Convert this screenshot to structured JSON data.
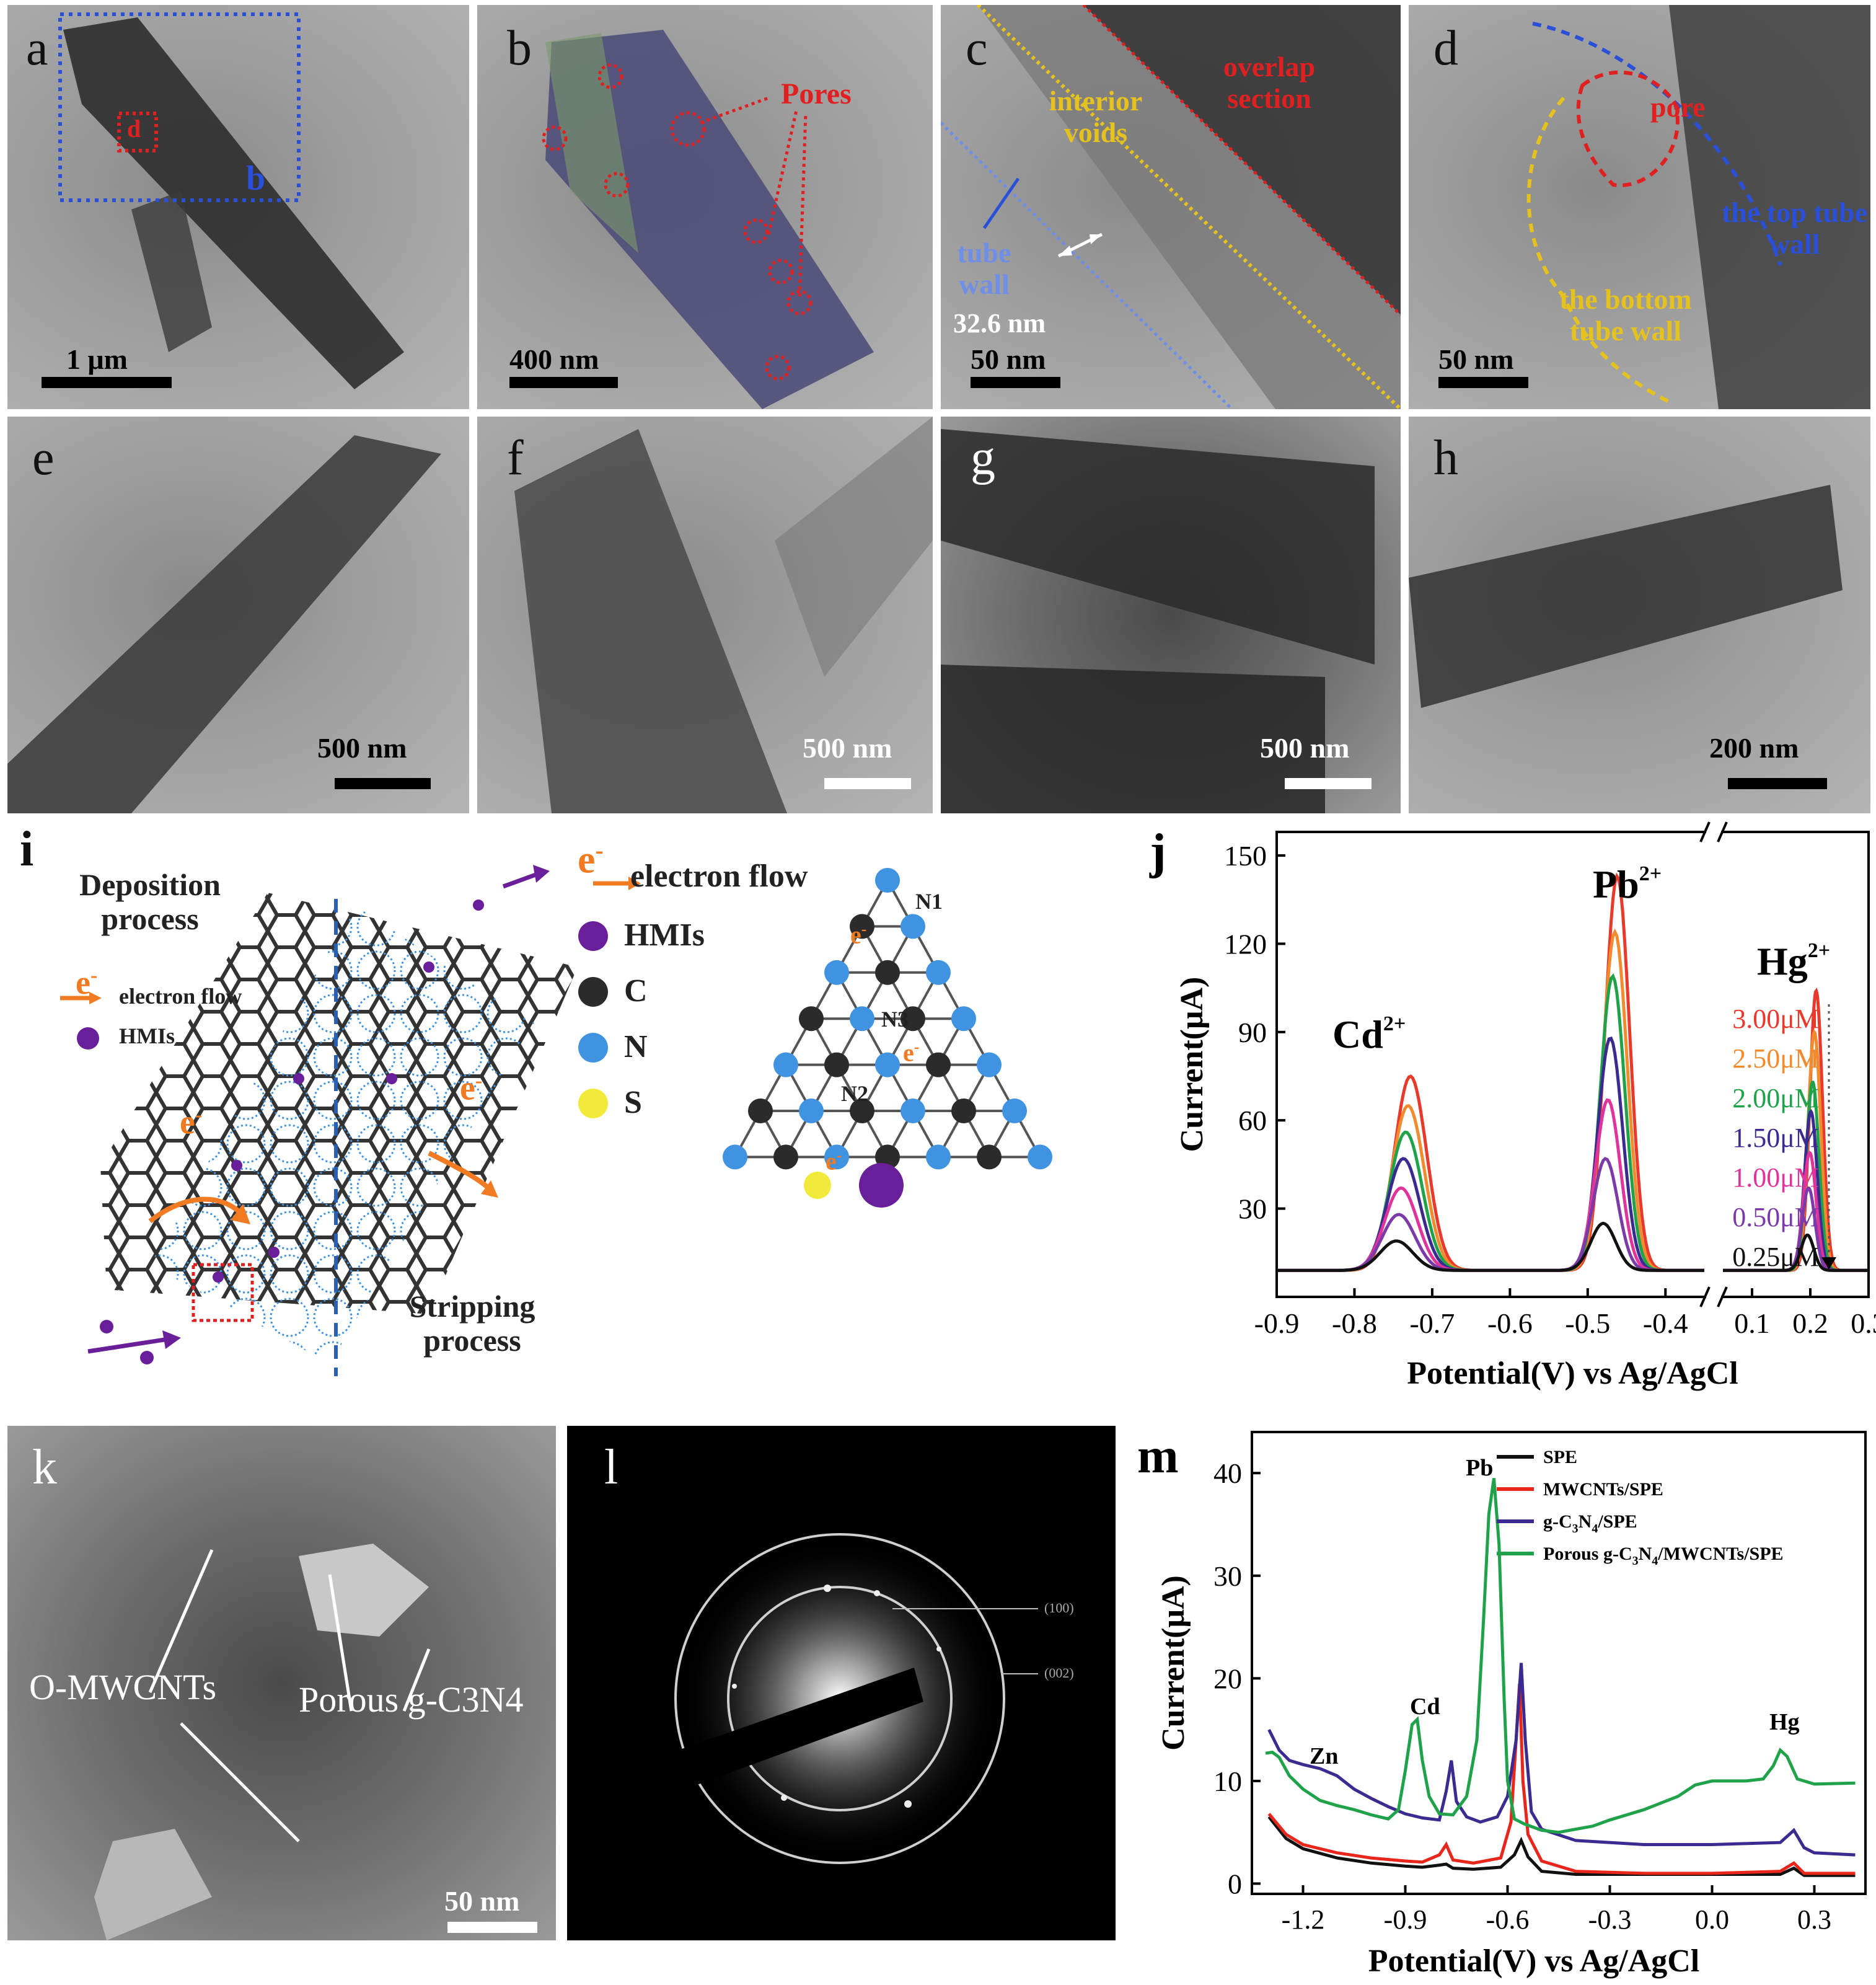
{
  "panels": {
    "a": {
      "label": "a",
      "scale": "1 μm",
      "box_label": "b",
      "inset_label": "d"
    },
    "b": {
      "label": "b",
      "scale": "400 nm",
      "annotation": "Pores"
    },
    "c": {
      "label": "c",
      "scale": "50 nm",
      "ann_overlap": "overlap section",
      "ann_voids": "interior voids",
      "ann_wall": "tube wall",
      "ann_width": "32.6 nm"
    },
    "d": {
      "label": "d",
      "scale": "50 nm",
      "ann_pore": "pore",
      "ann_top": "the top tube wall",
      "ann_bottom": "the bottom tube wall"
    },
    "e": {
      "label": "e",
      "scale": "500 nm"
    },
    "f": {
      "label": "f",
      "scale": "500 nm"
    },
    "g": {
      "label": "g",
      "scale": "500 nm"
    },
    "h": {
      "label": "h",
      "scale": "200 nm"
    },
    "i": {
      "label": "i",
      "deposition_title": "Deposition process",
      "electron_flow_small": "electron flow",
      "hmis_small": "HMIs",
      "stripping_title": "Stripping process",
      "electron_symbol": "e",
      "electron_sup": "-",
      "legend": {
        "electron_flow": "electron flow",
        "hmis": "HMIs",
        "c": "C",
        "n": "N",
        "s": "S"
      },
      "atom_labels": {
        "n1": "N1",
        "n2": "N2",
        "n3": "N3"
      },
      "colors": {
        "hmi": "#6a1f9a",
        "c": "#2b2b2b",
        "n": "#3f93e0",
        "s": "#f2ea3a",
        "electron": "#f07b22"
      }
    },
    "k": {
      "label": "k",
      "scale": "50 nm",
      "ann_mwcnt": "O-MWCNTs",
      "ann_porous": "Porous g-C3N4"
    },
    "l": {
      "label": "l",
      "ring1": "(100)",
      "ring2": "(002)"
    }
  },
  "chart_data": [
    {
      "panel": "j",
      "type": "line",
      "label": "j",
      "xlabel": "Potential(V) vs Ag/AgCl",
      "ylabel": "Current(μA)",
      "ylim": [
        0,
        158
      ],
      "yticks": [
        30,
        60,
        90,
        120,
        150
      ],
      "x_segments": [
        {
          "xlim": [
            -0.9,
            -0.35
          ],
          "ticks": [
            "-0.9",
            "-0.8",
            "-0.7",
            "-0.6",
            "-0.5",
            "-0.4"
          ]
        },
        {
          "xlim": [
            0.05,
            0.3
          ],
          "ticks": [
            "0.1",
            "0.2",
            "0.3"
          ]
        }
      ],
      "axis_break": true,
      "baseline": 9,
      "peaks": [
        {
          "ion": "Cd",
          "charge": "2+",
          "center": -0.74,
          "width": 0.021
        },
        {
          "ion": "Pb",
          "charge": "2+",
          "center": -0.475,
          "width": 0.016
        },
        {
          "ion": "Hg",
          "charge": "2+",
          "center": 0.2,
          "width": 0.011
        }
      ],
      "series": [
        {
          "name": "3.00μM",
          "color": "#e8392b",
          "peak_values": [
            75,
            143,
            104
          ],
          "centers": [
            -0.728,
            -0.462,
            0.21
          ]
        },
        {
          "name": "2.50μM",
          "color": "#f28b2e",
          "peak_values": [
            65,
            124,
            90
          ],
          "centers": [
            -0.731,
            -0.465,
            0.207
          ]
        },
        {
          "name": "2.00μM",
          "color": "#1fa24a",
          "peak_values": [
            56,
            109,
            73
          ],
          "centers": [
            -0.734,
            -0.468,
            0.204
          ]
        },
        {
          "name": "1.50μM",
          "color": "#3b2a8f",
          "peak_values": [
            47,
            88,
            63
          ],
          "centers": [
            -0.737,
            -0.471,
            0.201
          ]
        },
        {
          "name": "1.00μM",
          "color": "#e0339b",
          "peak_values": [
            37,
            67,
            49
          ],
          "centers": [
            -0.74,
            -0.474,
            0.199
          ]
        },
        {
          "name": "0.50μM",
          "color": "#7c3aa8",
          "peak_values": [
            28,
            47,
            37
          ],
          "centers": [
            -0.743,
            -0.477,
            0.197
          ]
        },
        {
          "name": "0.25μM",
          "color": "#111111",
          "peak_values": [
            19,
            25,
            21
          ],
          "centers": [
            -0.746,
            -0.48,
            0.195
          ]
        }
      ],
      "annotations": {
        "cd": "Cd",
        "pb": "Pb",
        "hg": "Hg",
        "charge": "2+"
      }
    },
    {
      "panel": "m",
      "type": "line",
      "label": "m",
      "xlabel": "Potential(V) vs Ag/AgCl",
      "ylabel": "Current(μA)",
      "xlim": [
        -1.35,
        0.45
      ],
      "ylim": [
        -1,
        44
      ],
      "xticks": [
        -1.2,
        -0.9,
        -0.6,
        -0.3,
        0.0,
        0.3
      ],
      "yticks": [
        0,
        10,
        20,
        30,
        40
      ],
      "annotations": {
        "zn": "Zn",
        "cd": "Cd",
        "pb": "Pb",
        "hg": "Hg"
      },
      "series": [
        {
          "name": "SPE",
          "color": "#111111",
          "points": [
            [
              -1.3,
              6.5
            ],
            [
              -1.25,
              4.4
            ],
            [
              -1.2,
              3.4
            ],
            [
              -1.1,
              2.5
            ],
            [
              -1.0,
              2.0
            ],
            [
              -0.9,
              1.7
            ],
            [
              -0.85,
              1.6
            ],
            [
              -0.8,
              1.8
            ],
            [
              -0.78,
              1.9
            ],
            [
              -0.76,
              1.5
            ],
            [
              -0.7,
              1.4
            ],
            [
              -0.62,
              1.6
            ],
            [
              -0.58,
              2.8
            ],
            [
              -0.56,
              4.2
            ],
            [
              -0.54,
              2.6
            ],
            [
              -0.5,
              1.2
            ],
            [
              -0.4,
              0.9
            ],
            [
              -0.2,
              0.9
            ],
            [
              0.0,
              0.9
            ],
            [
              0.2,
              0.9
            ],
            [
              0.24,
              1.5
            ],
            [
              0.27,
              0.8
            ],
            [
              0.42,
              0.8
            ]
          ]
        },
        {
          "name": "MWCNTs/SPE",
          "color": "#e8261b",
          "points": [
            [
              -1.3,
              6.8
            ],
            [
              -1.25,
              4.8
            ],
            [
              -1.2,
              3.8
            ],
            [
              -1.1,
              3.0
            ],
            [
              -1.0,
              2.5
            ],
            [
              -0.9,
              2.2
            ],
            [
              -0.85,
              2.1
            ],
            [
              -0.8,
              2.8
            ],
            [
              -0.78,
              3.8
            ],
            [
              -0.76,
              2.3
            ],
            [
              -0.7,
              2.0
            ],
            [
              -0.62,
              2.5
            ],
            [
              -0.59,
              6.0
            ],
            [
              -0.575,
              14.0
            ],
            [
              -0.565,
              19.5
            ],
            [
              -0.555,
              10.0
            ],
            [
              -0.54,
              4.8
            ],
            [
              -0.5,
              2.2
            ],
            [
              -0.4,
              1.2
            ],
            [
              -0.2,
              1.0
            ],
            [
              0.0,
              1.0
            ],
            [
              0.2,
              1.2
            ],
            [
              0.24,
              2.0
            ],
            [
              0.27,
              1.0
            ],
            [
              0.42,
              1.0
            ]
          ]
        },
        {
          "name": "g-C3N4/SPE",
          "color": "#3b2a8f",
          "points": [
            [
              -1.3,
              15.0
            ],
            [
              -1.27,
              13.0
            ],
            [
              -1.24,
              12.0
            ],
            [
              -1.2,
              11.6
            ],
            [
              -1.15,
              11.2
            ],
            [
              -1.1,
              10.5
            ],
            [
              -1.05,
              9.2
            ],
            [
              -1.0,
              8.3
            ],
            [
              -0.95,
              7.5
            ],
            [
              -0.9,
              6.8
            ],
            [
              -0.85,
              6.4
            ],
            [
              -0.8,
              6.2
            ],
            [
              -0.78,
              9.0
            ],
            [
              -0.765,
              12.0
            ],
            [
              -0.75,
              8.0
            ],
            [
              -0.72,
              6.5
            ],
            [
              -0.68,
              6.0
            ],
            [
              -0.63,
              6.5
            ],
            [
              -0.6,
              8.5
            ],
            [
              -0.575,
              14.0
            ],
            [
              -0.56,
              21.5
            ],
            [
              -0.548,
              14.0
            ],
            [
              -0.53,
              7.0
            ],
            [
              -0.5,
              5.3
            ],
            [
              -0.4,
              4.2
            ],
            [
              -0.2,
              3.8
            ],
            [
              0.0,
              3.8
            ],
            [
              0.2,
              4.0
            ],
            [
              0.24,
              5.2
            ],
            [
              0.27,
              3.5
            ],
            [
              0.3,
              3.0
            ],
            [
              0.42,
              2.8
            ]
          ]
        },
        {
          "name": "Porous g-C3N4/MWCNTs/SPE",
          "color": "#1fa24a",
          "points": [
            [
              -1.31,
              12.7
            ],
            [
              -1.29,
              12.8
            ],
            [
              -1.27,
              12.3
            ],
            [
              -1.24,
              10.5
            ],
            [
              -1.2,
              9.2
            ],
            [
              -1.15,
              8.1
            ],
            [
              -1.1,
              7.6
            ],
            [
              -1.05,
              7.2
            ],
            [
              -1.0,
              6.7
            ],
            [
              -0.95,
              6.3
            ],
            [
              -0.92,
              7.2
            ],
            [
              -0.9,
              11.0
            ],
            [
              -0.88,
              15.5
            ],
            [
              -0.865,
              16.0
            ],
            [
              -0.85,
              12.0
            ],
            [
              -0.83,
              8.5
            ],
            [
              -0.8,
              6.8
            ],
            [
              -0.76,
              6.7
            ],
            [
              -0.72,
              8.5
            ],
            [
              -0.69,
              14.0
            ],
            [
              -0.67,
              26.0
            ],
            [
              -0.655,
              36.0
            ],
            [
              -0.64,
              39.5
            ],
            [
              -0.625,
              33.0
            ],
            [
              -0.61,
              18.0
            ],
            [
              -0.6,
              10.0
            ],
            [
              -0.58,
              6.3
            ],
            [
              -0.55,
              5.8
            ],
            [
              -0.5,
              5.2
            ],
            [
              -0.45,
              5.0
            ],
            [
              -0.4,
              5.3
            ],
            [
              -0.35,
              5.6
            ],
            [
              -0.3,
              6.2
            ],
            [
              -0.2,
              7.2
            ],
            [
              -0.1,
              8.5
            ],
            [
              -0.05,
              9.6
            ],
            [
              0.0,
              10.0
            ],
            [
              0.1,
              10.0
            ],
            [
              0.15,
              10.2
            ],
            [
              0.18,
              11.5
            ],
            [
              0.2,
              13.0
            ],
            [
              0.22,
              12.4
            ],
            [
              0.25,
              10.2
            ],
            [
              0.3,
              9.7
            ],
            [
              0.42,
              9.8
            ]
          ]
        }
      ]
    }
  ]
}
